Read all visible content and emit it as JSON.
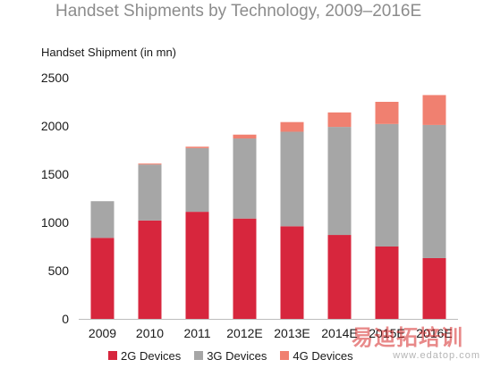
{
  "chart_data": {
    "type": "bar",
    "stacked": true,
    "title": "Handset Shipments by Technology, 2009–2016E",
    "ylabel": "Handset Shipment (in mn)",
    "xlabel": "",
    "ylim": [
      0,
      2500
    ],
    "yticks": [
      0,
      500,
      1000,
      1500,
      2000,
      2500
    ],
    "grid": false,
    "legend_position": "bottom",
    "categories": [
      "2009",
      "2010",
      "2011",
      "2012E",
      "2013E",
      "2014E",
      "2015E",
      "2016E"
    ],
    "series": [
      {
        "name": "2G Devices",
        "color": "#d7263d",
        "values": [
          840,
          1020,
          1110,
          1040,
          960,
          870,
          750,
          630
        ]
      },
      {
        "name": "3G Devices",
        "color": "#a6a6a6",
        "values": [
          380,
          580,
          660,
          830,
          980,
          1120,
          1270,
          1380
        ]
      },
      {
        "name": "4G Devices",
        "color": "#f08070",
        "values": [
          0,
          10,
          15,
          40,
          100,
          150,
          230,
          310
        ]
      }
    ]
  },
  "watermark": {
    "logo_text": "易迪拓培训",
    "url": "www.edatop.com"
  }
}
